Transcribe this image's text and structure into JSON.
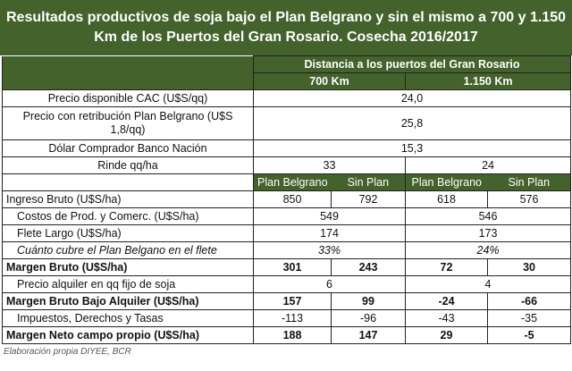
{
  "title": "Resultados productivos de soja bajo el Plan Belgrano y sin el mismo a 700 y 1.150 Km de los Puertos del Gran Rosario. Cosecha 2016/2017",
  "header": {
    "distance": "Distancia a los puertos del Gran Rosario",
    "d1": "700 Km",
    "d2": "1.150 Km",
    "plan": "Plan Belgrano",
    "sin": "Sin Plan"
  },
  "params": [
    {
      "label": "Precio disponible CAC (U$S/qq)",
      "value": "24,0"
    },
    {
      "label": "Precio con retribución Plan Belgrano (U$S 1,8/qq)",
      "value": "25,8"
    },
    {
      "label": "Dólar Comprador Banco Nación",
      "value": "15,3"
    }
  ],
  "rinde": {
    "label": "Rinde qq/ha",
    "d1": "33",
    "d2": "24"
  },
  "rows": [
    {
      "label": "Ingreso Bruto (U$S/ha)",
      "v": [
        "850",
        "792",
        "618",
        "576"
      ]
    },
    {
      "label": "Costos de Prod. y Comerc. (U$S/ha)",
      "m": [
        "549",
        "546"
      ]
    },
    {
      "label": "Flete Largo (U$S/ha)",
      "m": [
        "174",
        "173"
      ]
    },
    {
      "label": "Cuánto cubre el Plan Belgano en el flete",
      "m": [
        "33%",
        "24%"
      ]
    },
    {
      "label": "Margen Bruto (U$S/ha)",
      "v": [
        "301",
        "243",
        "72",
        "30"
      ]
    },
    {
      "label": "Precio alquiler en qq fijo de soja",
      "m": [
        "6",
        "4"
      ]
    },
    {
      "label": "Margen Bruto Bajo Alquiler (U$S/ha)",
      "v": [
        "157",
        "99",
        "-24",
        "-66"
      ]
    },
    {
      "label": "Impuestos, Derechos y Tasas",
      "v": [
        "-113",
        "-96",
        "-43",
        "-35"
      ]
    },
    {
      "label": "Margen Neto campo propio (U$S/ha)",
      "v": [
        "188",
        "147",
        "29",
        "-5"
      ]
    }
  ],
  "footer": "Elaboración propia DIYEE, BCR"
}
